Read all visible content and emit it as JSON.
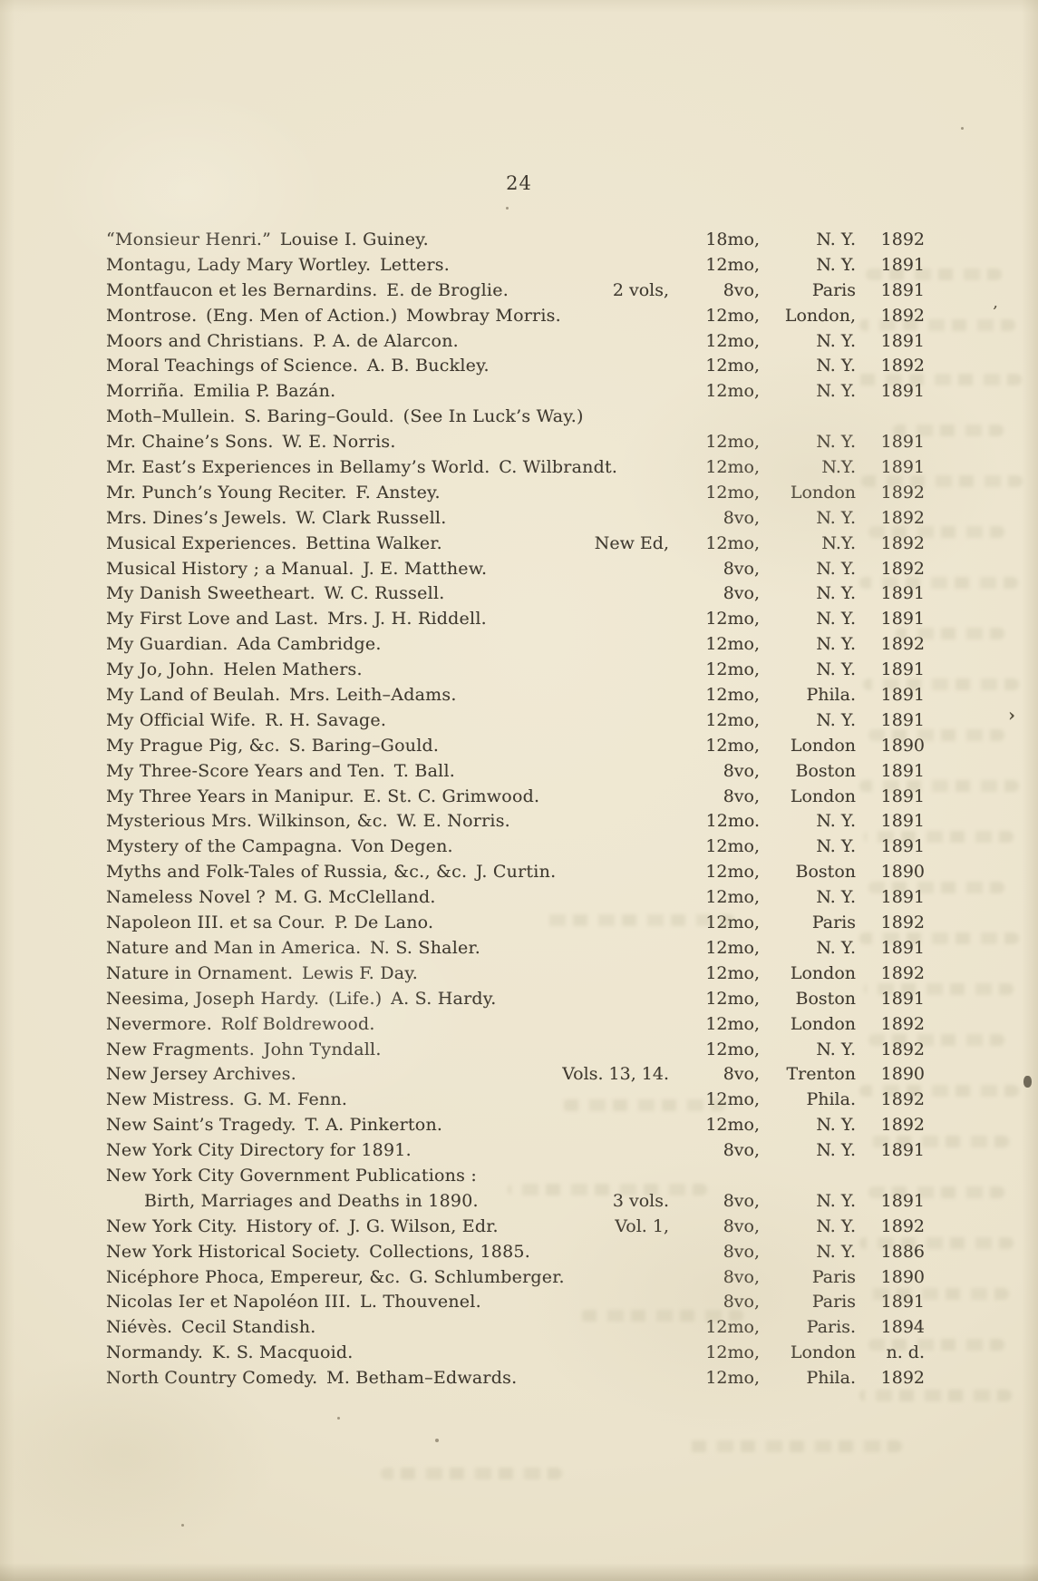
{
  "page": {
    "number": "24"
  },
  "colors": {
    "paper": "#ebe3cc",
    "ink": "#3f392f",
    "bleed_ghost": "#8b8863"
  },
  "list": {
    "rows": [
      {
        "title": "“Monsieur Henri.” Louise I. Guiney.",
        "extra": "",
        "format": "18mo,",
        "place": "N. Y.",
        "year": "1892",
        "indent": false
      },
      {
        "title": "Montagu, Lady Mary Wortley. Letters.",
        "extra": "",
        "format": "12mo,",
        "place": "N. Y.",
        "year": "1891",
        "indent": false
      },
      {
        "title": "Montfaucon et les Bernardins. E. de Broglie.",
        "extra": "2 vols,",
        "format": "8vo,",
        "place": "Paris",
        "year": "1891",
        "indent": false
      },
      {
        "title": "Montrose. (Eng. Men of Action.) Mowbray Morris.",
        "extra": "",
        "format": "12mo,",
        "place": "London,",
        "year": "1892",
        "indent": false
      },
      {
        "title": "Moors and Christians. P. A. de Alarcon.",
        "extra": "",
        "format": "12mo,",
        "place": "N. Y.",
        "year": "1891",
        "indent": false
      },
      {
        "title": "Moral Teachings of Science. A. B. Buckley.",
        "extra": "",
        "format": "12mo,",
        "place": "N. Y.",
        "year": "1892",
        "indent": false
      },
      {
        "title": "Morriña. Emilia P. Bazán.",
        "extra": "",
        "format": "12mo,",
        "place": "N. Y.",
        "year": "1891",
        "indent": false
      },
      {
        "title": "Moth–Mullein. S. Baring–Gould. (See In Luck’s Way.)",
        "extra": "",
        "format": "",
        "place": "",
        "year": "",
        "indent": false
      },
      {
        "title": "Mr. Chaine’s Sons. W. E. Norris.",
        "extra": "",
        "format": "12mo,",
        "place": "N. Y.",
        "year": "1891",
        "indent": false
      },
      {
        "title": "Mr. East’s Experiences in Bellamy’s World. C. Wilbrandt.",
        "extra": "",
        "format": "12mo,",
        "place": "N.Y.",
        "year": "1891",
        "indent": false
      },
      {
        "title": "Mr. Punch’s Young Reciter. F. Anstey.",
        "extra": "",
        "format": "12mo,",
        "place": "London",
        "year": "1892",
        "indent": false
      },
      {
        "title": "Mrs. Dines’s Jewels. W. Clark Russell.",
        "extra": "",
        "format": "8vo,",
        "place": "N. Y.",
        "year": "1892",
        "indent": false
      },
      {
        "title": "Musical Experiences. Bettina Walker.",
        "extra": "New Ed,",
        "format": "12mo,",
        "place": "N.Y.",
        "year": "1892",
        "indent": false
      },
      {
        "title": "Musical History ; a Manual. J. E. Matthew.",
        "extra": "",
        "format": "8vo,",
        "place": "N. Y.",
        "year": "1892",
        "indent": false
      },
      {
        "title": "My Danish Sweetheart. W. C. Russell.",
        "extra": "",
        "format": "8vo,",
        "place": "N. Y.",
        "year": "1891",
        "indent": false
      },
      {
        "title": "My First Love and Last. Mrs. J. H. Riddell.",
        "extra": "",
        "format": "12mo,",
        "place": "N. Y.",
        "year": "1891",
        "indent": false
      },
      {
        "title": "My Guardian. Ada Cambridge.",
        "extra": "",
        "format": "12mo,",
        "place": "N. Y.",
        "year": "1892",
        "indent": false
      },
      {
        "title": "My Jo, John. Helen Mathers.",
        "extra": "",
        "format": "12mo,",
        "place": "N. Y.",
        "year": "1891",
        "indent": false
      },
      {
        "title": "My Land of Beulah. Mrs. Leith–Adams.",
        "extra": "",
        "format": "12mo,",
        "place": "Phila.",
        "year": "1891",
        "indent": false
      },
      {
        "title": "My Official Wife. R. H. Savage.",
        "extra": "",
        "format": "12mo,",
        "place": "N. Y.",
        "year": "1891",
        "indent": false
      },
      {
        "title": "My Prague Pig, &c. S. Baring–Gould.",
        "extra": "",
        "format": "12mo,",
        "place": "London",
        "year": "1890",
        "indent": false
      },
      {
        "title": "My Three-Score Years and Ten. T. Ball.",
        "extra": "",
        "format": "8vo,",
        "place": "Boston",
        "year": "1891",
        "indent": false
      },
      {
        "title": "My Three Years in Manipur. E. St. C. Grimwood.",
        "extra": "",
        "format": "8vo,",
        "place": "London",
        "year": "1891",
        "indent": false
      },
      {
        "title": "Mysterious Mrs. Wilkinson, &c. W. E. Norris.",
        "extra": "",
        "format": "12mo.",
        "place": "N. Y.",
        "year": "1891",
        "indent": false
      },
      {
        "title": "Mystery of the Campagna. Von Degen.",
        "extra": "",
        "format": "12mo,",
        "place": "N. Y.",
        "year": "1891",
        "indent": false
      },
      {
        "title": "Myths and Folk-Tales of Russia, &c., &c. J. Curtin.",
        "extra": "",
        "format": "12mo,",
        "place": "Boston",
        "year": "1890",
        "indent": false
      },
      {
        "title": "Nameless Novel ? M. G. McClelland.",
        "extra": "",
        "format": "12mo,",
        "place": "N. Y.",
        "year": "1891",
        "indent": false
      },
      {
        "title": "Napoleon III. et sa Cour. P. De Lano.",
        "extra": "",
        "format": "12mo,",
        "place": "Paris",
        "year": "1892",
        "indent": false
      },
      {
        "title": "Nature and Man in America. N. S. Shaler.",
        "extra": "",
        "format": "12mo,",
        "place": "N. Y.",
        "year": "1891",
        "indent": false
      },
      {
        "title": "Nature in Ornament. Lewis F. Day.",
        "extra": "",
        "format": "12mo,",
        "place": "London",
        "year": "1892",
        "indent": false
      },
      {
        "title": "Neesima, Joseph Hardy. (Life.) A. S. Hardy.",
        "extra": "",
        "format": "12mo,",
        "place": "Boston",
        "year": "1891",
        "indent": false
      },
      {
        "title": "Nevermore. Rolf Boldrewood.",
        "extra": "",
        "format": "12mo,",
        "place": "London",
        "year": "1892",
        "indent": false
      },
      {
        "title": "New Fragments. John Tyndall.",
        "extra": "",
        "format": "12mo,",
        "place": "N. Y.",
        "year": "1892",
        "indent": false
      },
      {
        "title": "New Jersey Archives.",
        "extra": "Vols. 13, 14.",
        "format": "8vo,",
        "place": "Trenton",
        "year": "1890",
        "indent": false
      },
      {
        "title": "New Mistress. G. M. Fenn.",
        "extra": "",
        "format": "12mo,",
        "place": "Phila.",
        "year": "1892",
        "indent": false
      },
      {
        "title": "New Saint’s Tragedy. T. A. Pinkerton.",
        "extra": "",
        "format": "12mo,",
        "place": "N. Y.",
        "year": "1892",
        "indent": false
      },
      {
        "title": "New York City Directory for 1891.",
        "extra": "",
        "format": "8vo,",
        "place": "N. Y.",
        "year": "1891",
        "indent": false
      },
      {
        "title": "New York City Government Publications :",
        "extra": "",
        "format": "",
        "place": "",
        "year": "",
        "indent": false
      },
      {
        "title": "Birth, Marriages and Deaths in 1890.",
        "extra": "3 vols.",
        "format": "8vo,",
        "place": "N. Y.",
        "year": "1891",
        "indent": true
      },
      {
        "title": "New York City. History of. J. G. Wilson, Edr.",
        "extra": "Vol. 1,",
        "format": "8vo,",
        "place": "N. Y.",
        "year": "1892",
        "indent": false
      },
      {
        "title": "New York Historical Society. Collections, 1885.",
        "extra": "",
        "format": "8vo,",
        "place": "N. Y.",
        "year": "1886",
        "indent": false
      },
      {
        "title": "Nicéphore Phoca, Empereur, &c. G. Schlumberger.",
        "extra": "",
        "format": "8vo,",
        "place": "Paris",
        "year": "1890",
        "indent": false
      },
      {
        "title": "Nicolas Ier et Napoléon III. L. Thouvenel.",
        "extra": "",
        "format": "8vo,",
        "place": "Paris",
        "year": "1891",
        "indent": false
      },
      {
        "title": "Niévès. Cecil Standish.",
        "extra": "",
        "format": "12mo,",
        "place": "Paris.",
        "year": "1894",
        "indent": false
      },
      {
        "title": "Normandy. K. S. Macquoid.",
        "extra": "",
        "format": "12mo,",
        "place": "London",
        "year": "n. d.",
        "indent": false
      },
      {
        "title": "North Country Comedy. M. Betham–Edwards.",
        "extra": "",
        "format": "12mo,",
        "place": "Phila.",
        "year": "1892",
        "indent": false
      }
    ]
  }
}
